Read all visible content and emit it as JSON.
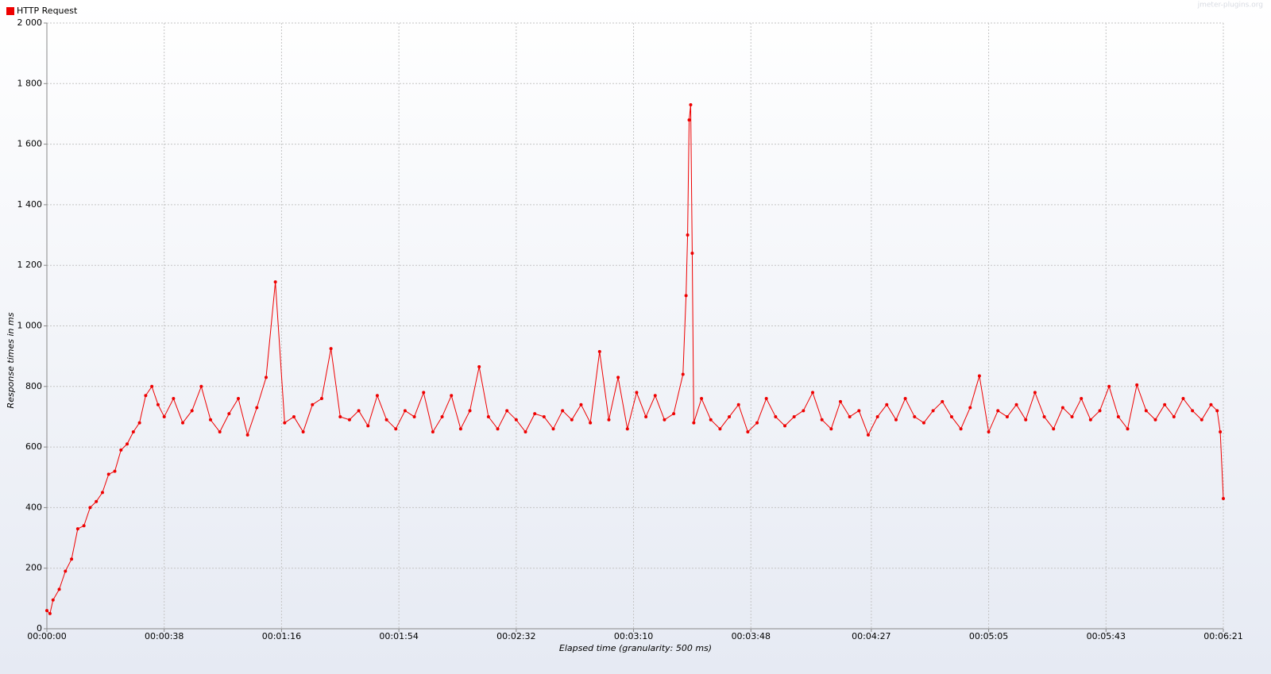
{
  "chart_data": {
    "type": "line",
    "watermark": "jmeter-plugins.org",
    "xlabel": "Elapsed time (granularity: 500 ms)",
    "ylabel": "Response times in ms",
    "legend": "top-left",
    "grid": true,
    "x": [
      0,
      1,
      2,
      4,
      6,
      8,
      10,
      12,
      14,
      16,
      18,
      20,
      22,
      24,
      26,
      28,
      30,
      32,
      34,
      36,
      38,
      41,
      44,
      47,
      50,
      53,
      56,
      59,
      62,
      65,
      68,
      71,
      74,
      77,
      80,
      83,
      86,
      89,
      92,
      95,
      98,
      101,
      104,
      107,
      110,
      113,
      116,
      119,
      122,
      125,
      128,
      131,
      134,
      137,
      140,
      143,
      146,
      149,
      152,
      155,
      158,
      161,
      164,
      167,
      170,
      173,
      176,
      179,
      182,
      185,
      188,
      191,
      194,
      197,
      200,
      203,
      206,
      207,
      207.5,
      208,
      208.5,
      209,
      209.5,
      212,
      215,
      218,
      221,
      224,
      227,
      230,
      233,
      236,
      239,
      242,
      245,
      248,
      251,
      254,
      257,
      260,
      263,
      266,
      269,
      272,
      275,
      278,
      281,
      284,
      287,
      290,
      293,
      296,
      299,
      302,
      305,
      308,
      311,
      314,
      317,
      320,
      323,
      326,
      329,
      332,
      335,
      338,
      341,
      344,
      347,
      350,
      353,
      356,
      359,
      362,
      365,
      368,
      371,
      374,
      377,
      379,
      380,
      381
    ],
    "series": [
      {
        "name": "HTTP Request",
        "color": "#ee0000",
        "values": [
          60,
          50,
          95,
          130,
          190,
          230,
          330,
          340,
          400,
          420,
          450,
          510,
          520,
          590,
          610,
          650,
          680,
          770,
          800,
          740,
          700,
          760,
          680,
          720,
          800,
          690,
          650,
          710,
          760,
          640,
          730,
          830,
          1145,
          680,
          700,
          650,
          740,
          760,
          925,
          700,
          690,
          720,
          670,
          770,
          690,
          660,
          720,
          700,
          780,
          650,
          700,
          770,
          660,
          720,
          865,
          700,
          660,
          720,
          690,
          650,
          710,
          700,
          660,
          720,
          690,
          740,
          680,
          915,
          690,
          830,
          660,
          780,
          700,
          770,
          690,
          710,
          840,
          1100,
          1300,
          1680,
          1730,
          1240,
          680,
          760,
          690,
          660,
          700,
          740,
          650,
          680,
          760,
          700,
          670,
          700,
          720,
          780,
          690,
          660,
          750,
          700,
          720,
          640,
          700,
          740,
          690,
          760,
          700,
          680,
          720,
          750,
          700,
          660,
          730,
          835,
          650,
          720,
          700,
          740,
          690,
          780,
          700,
          660,
          730,
          700,
          760,
          690,
          720,
          800,
          700,
          660,
          805,
          720,
          690,
          740,
          700,
          760,
          720,
          690,
          740,
          720,
          650,
          430
        ]
      }
    ],
    "xlim": [
      0,
      381
    ],
    "xticks": [
      {
        "value": 0,
        "label": "00:00:00"
      },
      {
        "value": 38,
        "label": "00:00:38"
      },
      {
        "value": 76,
        "label": "00:01:16"
      },
      {
        "value": 114,
        "label": "00:01:54"
      },
      {
        "value": 152,
        "label": "00:02:32"
      },
      {
        "value": 190,
        "label": "00:03:10"
      },
      {
        "value": 228,
        "label": "00:03:48"
      },
      {
        "value": 267,
        "label": "00:04:27"
      },
      {
        "value": 305,
        "label": "00:05:05"
      },
      {
        "value": 343,
        "label": "00:05:43"
      },
      {
        "value": 381,
        "label": "00:06:21"
      }
    ],
    "ylim": [
      0,
      2000
    ],
    "yticks": [
      0,
      200,
      400,
      600,
      800,
      {
        "value": 1000,
        "label": "1 000"
      },
      {
        "value": 1200,
        "label": "1 200"
      },
      {
        "value": 1400,
        "label": "1 400"
      },
      {
        "value": 1600,
        "label": "1 600"
      },
      {
        "value": 1800,
        "label": "1 800"
      },
      {
        "value": 2000,
        "label": "2 000"
      }
    ]
  }
}
